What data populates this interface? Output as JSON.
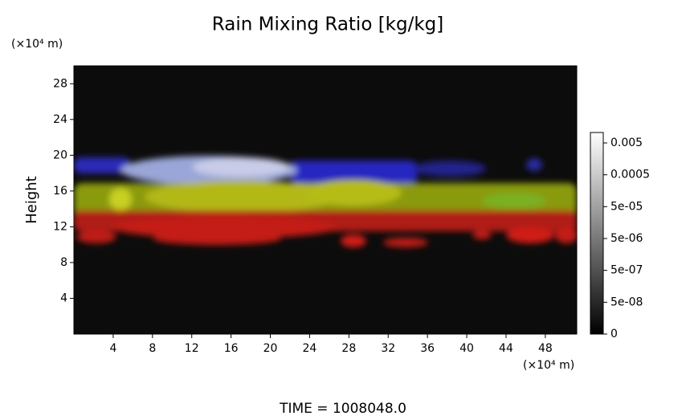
{
  "chart_data": {
    "type": "heatmap",
    "title": "Rain Mixing Ratio [kg/kg]",
    "y_unit": "(×10⁴ m)",
    "x_unit": "(×10⁴ m)",
    "ylabel": "Height",
    "footer": "TIME = 1008048.0",
    "xlim": [
      0,
      51.2
    ],
    "xticks": [
      4,
      8,
      12,
      16,
      20,
      24,
      28,
      32,
      36,
      40,
      44,
      48
    ],
    "ylim": [
      0,
      30
    ],
    "yticks": [
      4,
      8,
      12,
      16,
      20,
      24,
      28
    ],
    "colorbar_ticks": [
      0,
      {
        "value": 5e-08,
        "label": "5e-08"
      },
      {
        "value": 5e-07,
        "label": "5e-07"
      },
      {
        "value": 5e-06,
        "label": "5e-06"
      },
      {
        "value": 5e-05,
        "label": "5e-05"
      },
      0.0005,
      0.005
    ]
  }
}
